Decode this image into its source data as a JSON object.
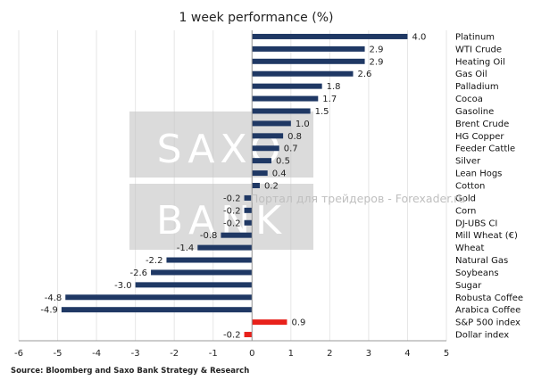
{
  "chart_data": {
    "type": "bar",
    "orientation": "horizontal",
    "title": "1 week performance (%)",
    "source": "Source: Bloomberg and Saxo Bank Strategy & Research",
    "categories": [
      "Platinum",
      "WTI Crude",
      "Heating Oil",
      "Gas Oil",
      "Palladium",
      "Cocoa",
      "Gasoline",
      "Brent Crude",
      "HG Copper",
      "Feeder Cattle",
      "Silver",
      "Lean Hogs",
      "Cotton",
      "Gold",
      "Corn",
      "DJ-UBS CI",
      "Mill Wheat (€)",
      "Wheat",
      "Natural Gas",
      "Soybeans",
      "Sugar",
      "Robusta Coffee",
      "Arabica Coffee",
      "S&P 500 index",
      "Dollar index"
    ],
    "values": [
      4.0,
      2.9,
      2.9,
      2.6,
      1.8,
      1.7,
      1.5,
      1.0,
      0.8,
      0.7,
      0.5,
      0.4,
      0.2,
      -0.2,
      -0.2,
      -0.2,
      -0.8,
      -1.4,
      -2.2,
      -2.6,
      -3.0,
      -4.8,
      -4.9,
      0.9,
      -0.2
    ],
    "value_labels": [
      "4.0",
      "2.9",
      "2.9",
      "2.6",
      "1.8",
      "1.7",
      "1.5",
      "1.0",
      "0.8",
      "0.7",
      "0.5",
      "0.4",
      "0.2",
      "-0.2",
      "-0.2",
      "-0.2",
      "-0.8",
      "-1.4",
      "-2.2",
      "-2.6",
      "-3.0",
      "-4.8",
      "-4.9",
      "0.9",
      "-0.2"
    ],
    "highlighted": [
      "S&P 500 index",
      "Dollar index"
    ],
    "xlim": [
      -6,
      5
    ],
    "xticks": [
      -6,
      -5,
      -4,
      -3,
      -2,
      -1,
      0,
      1,
      2,
      3,
      4,
      5
    ],
    "xlabel": "",
    "ylabel": "",
    "grid": "vertical",
    "legend": "none",
    "colors": {
      "bar": "#1F3864",
      "highlight": "#E8211B",
      "grid": "#E6E6E6",
      "axis": "#9A9A9A",
      "watermark_box": "#BDBDBD"
    }
  },
  "watermark": {
    "line1": "SAXO",
    "line2": "BANK",
    "portal": "Портал для трейдеров - Forexader.ru"
  }
}
